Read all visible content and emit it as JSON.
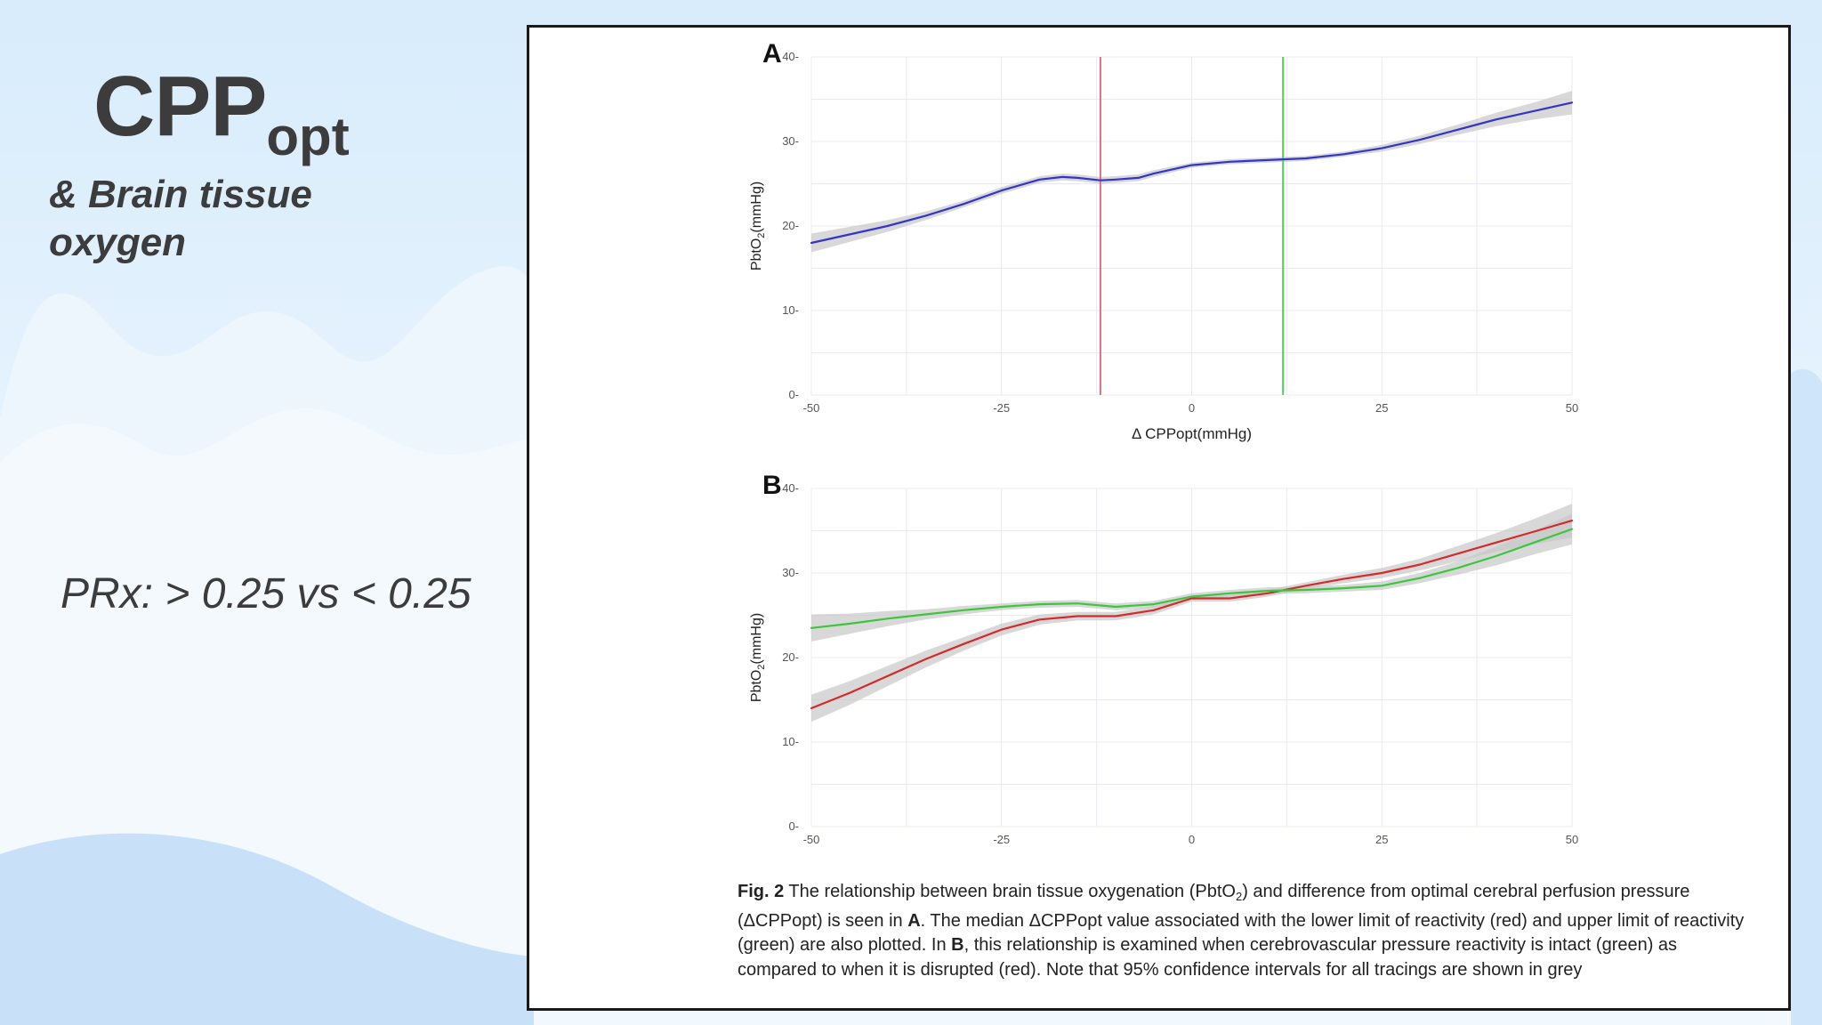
{
  "slide": {
    "title_main": "CPP",
    "title_sub": "opt",
    "subtitle": "& Brain tissue oxygen",
    "note": "PRx: > 0.25 vs < 0.25"
  },
  "colors": {
    "background": "#e3f1fd",
    "title_text": "#3c3c3c",
    "series_blue": "#3434c8",
    "series_red": "#d42a2a",
    "series_green": "#3cc63c",
    "lower_limit_line": "#d9708a",
    "upper_limit_line": "#4fd84f",
    "confidence_band": "#c8c8c8"
  },
  "chart_data": [
    {
      "type": "line",
      "panel_label": "A",
      "xlabel": "Δ CPPopt(mmHg)",
      "ylabel_main": "PbtO",
      "ylabel_sub": "2",
      "ylabel_unit": "(mmHg)",
      "xlim": [
        -50,
        50
      ],
      "ylim": [
        0,
        40
      ],
      "xticks": [
        -50,
        -25,
        0,
        25,
        50
      ],
      "yticks": [
        0,
        10,
        20,
        30,
        40
      ],
      "grid": true,
      "vlines": [
        {
          "x": -12,
          "color": "#d9708a"
        },
        {
          "x": 12,
          "color": "#4fd84f"
        }
      ],
      "series": [
        {
          "color": "#3434c8",
          "x": [
            -50,
            -45,
            -40,
            -35,
            -30,
            -25,
            -20,
            -17,
            -15,
            -12,
            -10,
            -7,
            -5,
            0,
            5,
            10,
            15,
            20,
            25,
            30,
            35,
            40,
            45,
            50
          ],
          "y": [
            18.0,
            19.0,
            20.0,
            21.2,
            22.6,
            24.2,
            25.5,
            25.8,
            25.7,
            25.4,
            25.5,
            25.7,
            26.2,
            27.2,
            27.6,
            27.8,
            28.0,
            28.5,
            29.2,
            30.2,
            31.4,
            32.6,
            33.6,
            34.6
          ],
          "ci_lower": [
            16.9,
            18.1,
            19.3,
            20.7,
            22.2,
            23.8,
            25.1,
            25.4,
            25.3,
            25.0,
            25.1,
            25.3,
            25.8,
            26.9,
            27.3,
            27.5,
            27.7,
            28.2,
            28.8,
            29.7,
            30.8,
            31.8,
            32.6,
            33.2
          ],
          "ci_upper": [
            19.1,
            19.9,
            20.7,
            21.7,
            23.0,
            24.6,
            25.9,
            26.2,
            26.1,
            25.8,
            25.9,
            26.1,
            26.6,
            27.5,
            27.9,
            28.1,
            28.3,
            28.8,
            29.6,
            30.7,
            32.0,
            33.4,
            34.6,
            36.0
          ]
        }
      ]
    },
    {
      "type": "line",
      "panel_label": "B",
      "xlabel": "Δ CPPopt(mmHg)",
      "ylabel_main": "PbtO",
      "ylabel_sub": "2",
      "ylabel_unit": "(mmHg)",
      "xlim": [
        -50,
        50
      ],
      "ylim": [
        0,
        40
      ],
      "xticks": [
        -50,
        -25,
        0,
        25,
        50
      ],
      "yticks": [
        0,
        10,
        20,
        30,
        40
      ],
      "grid": true,
      "series": [
        {
          "color": "#d42a2a",
          "x": [
            -50,
            -45,
            -40,
            -35,
            -30,
            -25,
            -20,
            -15,
            -10,
            -5,
            0,
            5,
            10,
            15,
            20,
            25,
            30,
            35,
            40,
            45,
            50
          ],
          "y": [
            14.0,
            15.8,
            17.8,
            19.8,
            21.6,
            23.3,
            24.5,
            24.9,
            24.9,
            25.6,
            27.0,
            27.0,
            27.6,
            28.5,
            29.3,
            30.0,
            31.0,
            32.3,
            33.6,
            34.9,
            36.2
          ],
          "ci_lower": [
            12.4,
            14.4,
            16.6,
            18.8,
            20.8,
            22.6,
            23.9,
            24.4,
            24.4,
            25.1,
            26.6,
            26.6,
            27.2,
            28.1,
            28.8,
            29.4,
            30.3,
            31.4,
            32.5,
            33.4,
            34.2
          ],
          "ci_upper": [
            15.6,
            17.2,
            19.0,
            20.8,
            22.4,
            24.0,
            25.1,
            25.4,
            25.4,
            26.1,
            27.4,
            27.4,
            28.0,
            28.9,
            29.8,
            30.6,
            31.7,
            33.2,
            34.7,
            36.4,
            38.2
          ]
        },
        {
          "color": "#3cc63c",
          "x": [
            -50,
            -45,
            -40,
            -35,
            -30,
            -25,
            -20,
            -15,
            -10,
            -5,
            0,
            5,
            10,
            15,
            20,
            25,
            30,
            35,
            40,
            45,
            50
          ],
          "y": [
            23.5,
            24.0,
            24.6,
            25.1,
            25.6,
            26.0,
            26.3,
            26.4,
            26.0,
            26.3,
            27.2,
            27.6,
            27.9,
            28.0,
            28.2,
            28.5,
            29.4,
            30.6,
            32.0,
            33.6,
            35.2
          ],
          "ci_lower": [
            21.9,
            22.8,
            23.7,
            24.5,
            25.1,
            25.6,
            25.9,
            26.0,
            25.6,
            25.9,
            26.8,
            27.2,
            27.5,
            27.6,
            27.8,
            28.0,
            28.8,
            29.8,
            30.9,
            32.2,
            33.4
          ],
          "ci_upper": [
            25.1,
            25.2,
            25.5,
            25.7,
            26.1,
            26.4,
            26.7,
            26.8,
            26.4,
            26.7,
            27.6,
            28.0,
            28.3,
            28.4,
            28.6,
            29.0,
            30.0,
            31.4,
            33.1,
            35.0,
            37.0
          ]
        }
      ]
    }
  ],
  "caption": {
    "label": "Fig. 2",
    "s1": " The relationship between brain tissue oxygenation (PbtO",
    "s1_sub": "2",
    "s2": ") and difference from optimal cerebral perfusion pressure (ΔCPPopt) is seen in ",
    "a_ref": "A",
    "s3": ". The median ΔCPPopt value associated with the lower limit of reactivity (red) and upper limit of reactivity (green) are also plotted. In ",
    "b_ref": "B",
    "s4": ", this relationship is examined when cerebrovascular pressure reactivity is intact (green) as compared to when it is disrupted (red). Note that 95% confidence intervals for all tracings are shown in grey"
  }
}
